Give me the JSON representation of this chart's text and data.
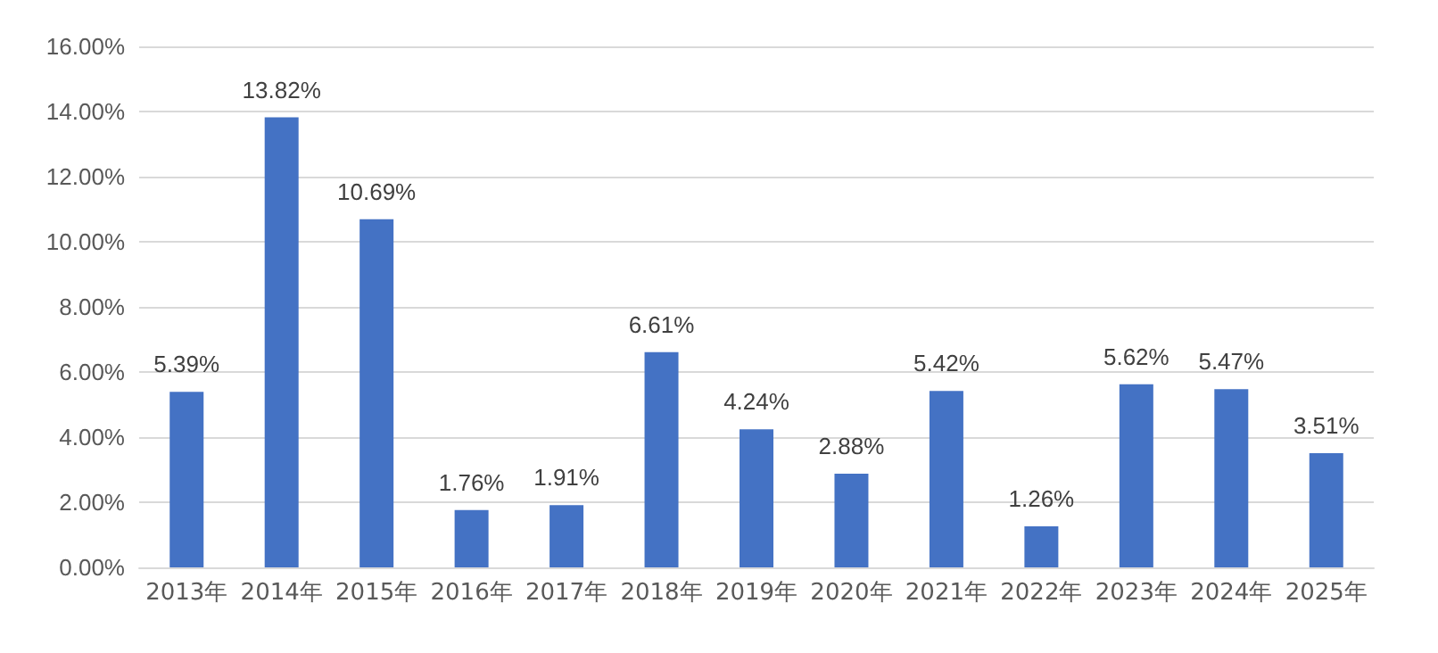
{
  "chart_data": {
    "type": "bar",
    "categories": [
      "2013年",
      "2014年",
      "2015年",
      "2016年",
      "2017年",
      "2018年",
      "2019年",
      "2020年",
      "2021年",
      "2022年",
      "2023年",
      "2024年",
      "2025年"
    ],
    "values": [
      5.39,
      13.82,
      10.69,
      1.76,
      1.91,
      6.61,
      4.24,
      2.88,
      5.42,
      1.26,
      5.62,
      5.47,
      3.51
    ],
    "value_labels": [
      "5.39%",
      "13.82%",
      "10.69%",
      "1.76%",
      "1.91%",
      "6.61%",
      "4.24%",
      "2.88%",
      "5.42%",
      "1.26%",
      "5.62%",
      "5.47%",
      "3.51%"
    ],
    "color": "#4472c4",
    "ylim": [
      0,
      16
    ],
    "yticks": [
      {
        "value": 0,
        "label": "0.00%"
      },
      {
        "value": 2,
        "label": "2.00%"
      },
      {
        "value": 4,
        "label": "4.00%"
      },
      {
        "value": 6,
        "label": "6.00%"
      },
      {
        "value": 8,
        "label": "8.00%"
      },
      {
        "value": 10,
        "label": "10.00%"
      },
      {
        "value": 12,
        "label": "12.00%"
      },
      {
        "value": 14,
        "label": "14.00%"
      },
      {
        "value": 16,
        "label": "16.00%"
      }
    ],
    "grid": "y"
  }
}
